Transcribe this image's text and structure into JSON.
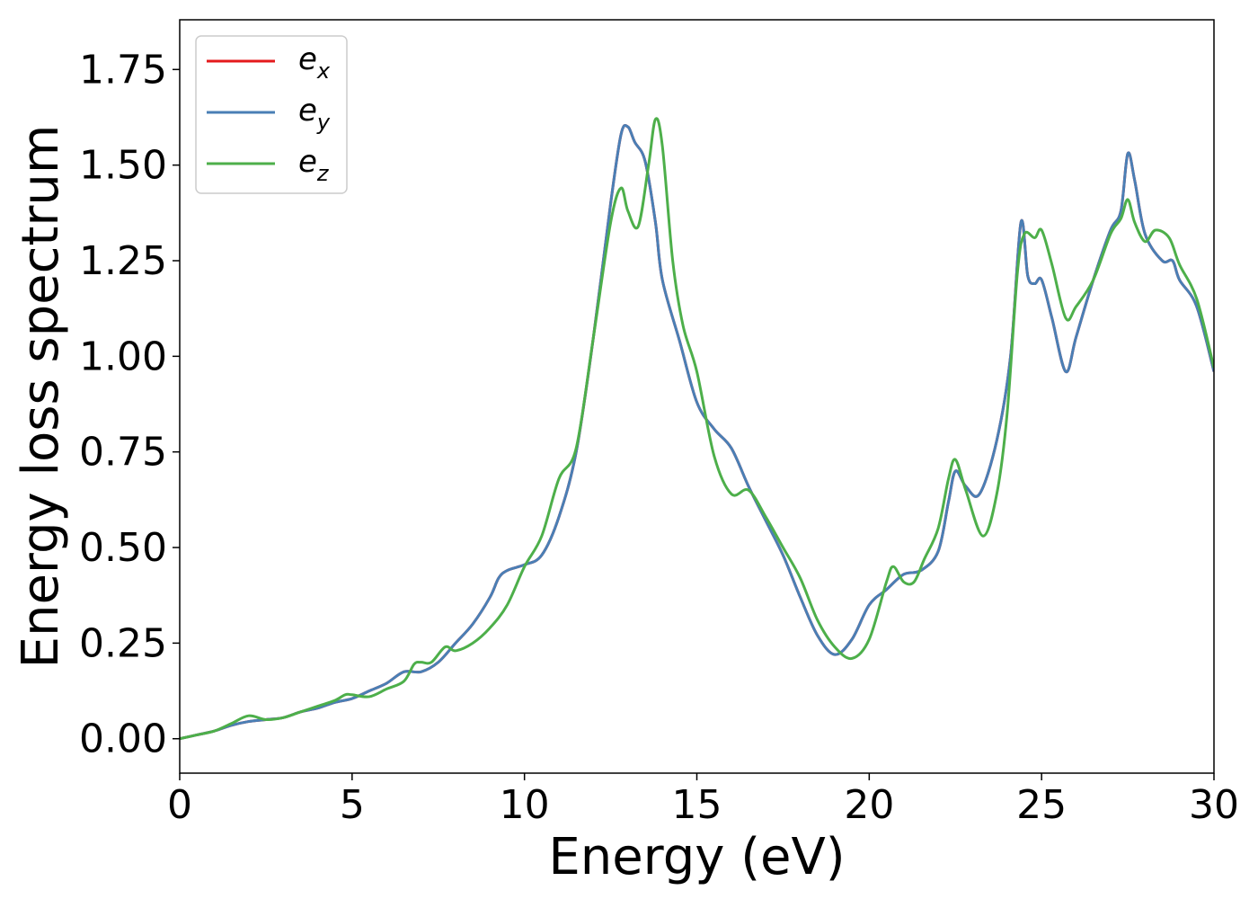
{
  "chart_data": {
    "type": "line",
    "xlabel": "Energy (eV)",
    "ylabel": "Energy loss spectrum",
    "xlim": [
      0,
      30
    ],
    "ylim": [
      -0.09,
      1.88
    ],
    "xticks": [
      0,
      5,
      10,
      15,
      20,
      25,
      30
    ],
    "xtick_labels": [
      "0",
      "5",
      "10",
      "15",
      "20",
      "25",
      "30"
    ],
    "yticks": [
      0.0,
      0.25,
      0.5,
      0.75,
      1.0,
      1.25,
      1.5,
      1.75
    ],
    "ytick_labels": [
      "0.00",
      "0.25",
      "0.50",
      "0.75",
      "1.00",
      "1.25",
      "1.50",
      "1.75"
    ],
    "grid": false,
    "legend": "upper-left",
    "series": [
      {
        "name": "e_x",
        "legend_base": "e",
        "legend_sub": "x",
        "color": "#e41a1c",
        "x": [
          0,
          0.5,
          1,
          1.5,
          2,
          2.5,
          3,
          3.5,
          4,
          4.5,
          5,
          5.5,
          6,
          6.5,
          7,
          7.5,
          8,
          8.5,
          9,
          9.25,
          9.5,
          10,
          10.5,
          11,
          11.5,
          12,
          12.5,
          12.8,
          13,
          13.2,
          13.5,
          13.8,
          14,
          14.5,
          15,
          15.5,
          16,
          16.5,
          17,
          17.5,
          18,
          18.5,
          19,
          19.5,
          20,
          20.5,
          21,
          21.5,
          22,
          22.3,
          22.5,
          22.8,
          23.2,
          23.7,
          24.1,
          24.4,
          24.6,
          24.8,
          25,
          25.3,
          25.7,
          26,
          26.5,
          27,
          27.3,
          27.5,
          27.7,
          28,
          28.5,
          28.8,
          29,
          29.5,
          30
        ],
        "y": [
          0.0,
          0.01,
          0.02,
          0.035,
          0.045,
          0.05,
          0.055,
          0.07,
          0.08,
          0.095,
          0.105,
          0.125,
          0.145,
          0.175,
          0.175,
          0.2,
          0.25,
          0.3,
          0.37,
          0.42,
          0.44,
          0.455,
          0.48,
          0.58,
          0.75,
          1.05,
          1.4,
          1.58,
          1.6,
          1.56,
          1.51,
          1.35,
          1.2,
          1.04,
          0.88,
          0.81,
          0.76,
          0.66,
          0.57,
          0.48,
          0.37,
          0.27,
          0.22,
          0.26,
          0.35,
          0.39,
          0.43,
          0.44,
          0.49,
          0.62,
          0.7,
          0.66,
          0.64,
          0.78,
          1.0,
          1.35,
          1.21,
          1.19,
          1.2,
          1.1,
          0.96,
          1.05,
          1.2,
          1.33,
          1.38,
          1.53,
          1.46,
          1.32,
          1.25,
          1.25,
          1.2,
          1.13,
          0.96
        ]
      },
      {
        "name": "e_y",
        "legend_base": "e",
        "legend_sub": "y",
        "color": "#4a7fb5",
        "x": [
          0,
          0.5,
          1,
          1.5,
          2,
          2.5,
          3,
          3.5,
          4,
          4.5,
          5,
          5.5,
          6,
          6.5,
          7,
          7.5,
          8,
          8.5,
          9,
          9.25,
          9.5,
          10,
          10.5,
          11,
          11.5,
          12,
          12.5,
          12.8,
          13,
          13.2,
          13.5,
          13.8,
          14,
          14.5,
          15,
          15.5,
          16,
          16.5,
          17,
          17.5,
          18,
          18.5,
          19,
          19.5,
          20,
          20.5,
          21,
          21.5,
          22,
          22.3,
          22.5,
          22.8,
          23.2,
          23.7,
          24.1,
          24.4,
          24.6,
          24.8,
          25,
          25.3,
          25.7,
          26,
          26.5,
          27,
          27.3,
          27.5,
          27.7,
          28,
          28.5,
          28.8,
          29,
          29.5,
          30
        ],
        "y": [
          0.0,
          0.01,
          0.02,
          0.035,
          0.045,
          0.05,
          0.055,
          0.07,
          0.08,
          0.095,
          0.105,
          0.125,
          0.145,
          0.175,
          0.175,
          0.2,
          0.25,
          0.3,
          0.37,
          0.42,
          0.44,
          0.455,
          0.48,
          0.58,
          0.75,
          1.05,
          1.4,
          1.58,
          1.6,
          1.56,
          1.51,
          1.35,
          1.2,
          1.04,
          0.88,
          0.81,
          0.76,
          0.66,
          0.57,
          0.48,
          0.37,
          0.27,
          0.22,
          0.26,
          0.35,
          0.39,
          0.43,
          0.44,
          0.49,
          0.62,
          0.7,
          0.66,
          0.64,
          0.78,
          1.0,
          1.35,
          1.21,
          1.19,
          1.2,
          1.1,
          0.96,
          1.05,
          1.2,
          1.33,
          1.38,
          1.53,
          1.46,
          1.32,
          1.25,
          1.25,
          1.2,
          1.13,
          0.96
        ]
      },
      {
        "name": "e_z",
        "legend_base": "e",
        "legend_sub": "z",
        "color": "#4daf4a",
        "x": [
          0,
          0.5,
          1,
          1.5,
          2,
          2.5,
          3,
          3.5,
          4,
          4.5,
          4.8,
          5,
          5.5,
          6,
          6.5,
          6.8,
          7,
          7.3,
          7.7,
          8,
          8.5,
          9,
          9.5,
          10,
          10.5,
          11,
          11.5,
          12,
          12.5,
          12.8,
          13,
          13.3,
          13.6,
          13.8,
          14,
          14.3,
          14.6,
          15,
          15.5,
          16,
          16.5,
          17,
          17.5,
          18,
          18.5,
          19,
          19.5,
          20,
          20.5,
          20.7,
          21,
          21.3,
          21.6,
          22,
          22.3,
          22.5,
          22.8,
          23.3,
          23.7,
          24,
          24.3,
          24.5,
          24.8,
          25,
          25.3,
          25.7,
          26,
          26.5,
          27,
          27.3,
          27.5,
          27.7,
          28,
          28.3,
          28.7,
          29,
          29.5,
          30
        ],
        "y": [
          0.0,
          0.01,
          0.02,
          0.04,
          0.06,
          0.05,
          0.055,
          0.07,
          0.085,
          0.1,
          0.115,
          0.115,
          0.11,
          0.13,
          0.15,
          0.195,
          0.2,
          0.2,
          0.24,
          0.23,
          0.25,
          0.29,
          0.35,
          0.45,
          0.53,
          0.68,
          0.76,
          1.05,
          1.35,
          1.44,
          1.38,
          1.34,
          1.5,
          1.62,
          1.55,
          1.25,
          1.08,
          0.96,
          0.74,
          0.64,
          0.65,
          0.58,
          0.5,
          0.42,
          0.31,
          0.24,
          0.21,
          0.26,
          0.41,
          0.45,
          0.41,
          0.41,
          0.47,
          0.55,
          0.68,
          0.73,
          0.65,
          0.53,
          0.64,
          0.85,
          1.22,
          1.32,
          1.31,
          1.33,
          1.24,
          1.1,
          1.13,
          1.2,
          1.32,
          1.36,
          1.41,
          1.35,
          1.3,
          1.33,
          1.31,
          1.24,
          1.15,
          0.97
        ]
      }
    ]
  }
}
